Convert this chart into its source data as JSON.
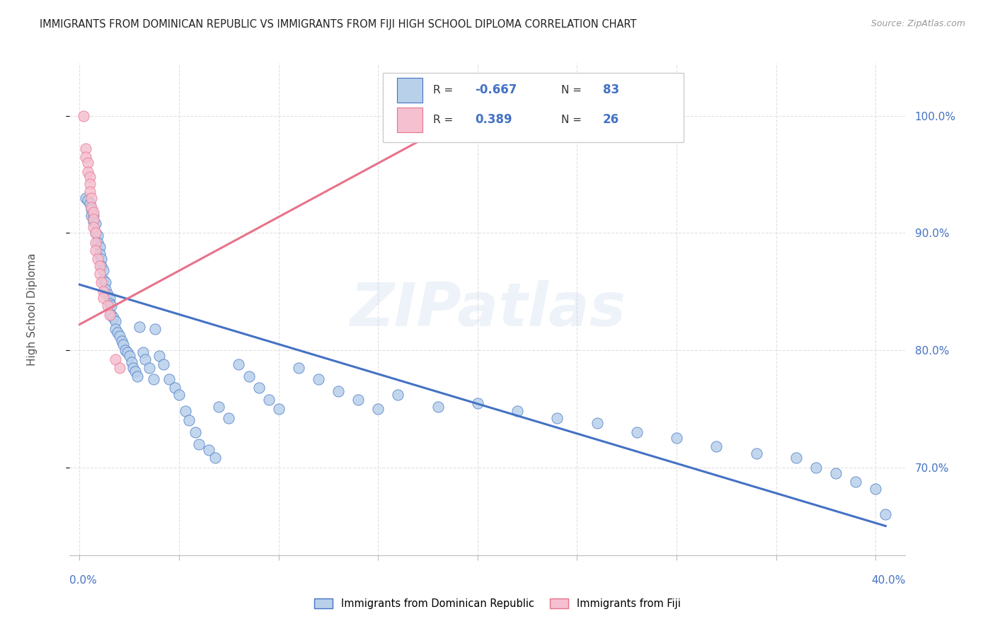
{
  "title": "IMMIGRANTS FROM DOMINICAN REPUBLIC VS IMMIGRANTS FROM FIJI HIGH SCHOOL DIPLOMA CORRELATION CHART",
  "source_text": "Source: ZipAtlas.com",
  "ylabel": "High School Diploma",
  "right_ytick_vals": [
    0.7,
    0.8,
    0.9,
    1.0
  ],
  "right_ytick_labels": [
    "70.0%",
    "80.0%",
    "90.0%",
    "100.0%"
  ],
  "xlim": [
    -0.005,
    0.415
  ],
  "ylim": [
    0.625,
    1.045
  ],
  "legend_r1": "-0.667",
  "legend_n1": "83",
  "legend_r2": "0.389",
  "legend_n2": "26",
  "color_blue": "#b8d0ea",
  "color_pink": "#f5c0d0",
  "line_blue": "#4472c4",
  "line_pink": "#e8728a",
  "title_color": "#222222",
  "source_color": "#999999",
  "blue_scatter_x": [
    0.003,
    0.004,
    0.005,
    0.006,
    0.006,
    0.007,
    0.007,
    0.008,
    0.008,
    0.009,
    0.009,
    0.01,
    0.01,
    0.011,
    0.011,
    0.012,
    0.012,
    0.013,
    0.013,
    0.014,
    0.015,
    0.015,
    0.016,
    0.016,
    0.017,
    0.018,
    0.018,
    0.019,
    0.02,
    0.021,
    0.022,
    0.023,
    0.024,
    0.025,
    0.026,
    0.027,
    0.028,
    0.029,
    0.03,
    0.032,
    0.033,
    0.035,
    0.037,
    0.038,
    0.04,
    0.042,
    0.045,
    0.048,
    0.05,
    0.053,
    0.055,
    0.058,
    0.06,
    0.065,
    0.068,
    0.07,
    0.075,
    0.08,
    0.085,
    0.09,
    0.095,
    0.1,
    0.11,
    0.12,
    0.13,
    0.14,
    0.15,
    0.16,
    0.18,
    0.2,
    0.22,
    0.24,
    0.26,
    0.28,
    0.3,
    0.32,
    0.34,
    0.36,
    0.37,
    0.38,
    0.39,
    0.4,
    0.405
  ],
  "blue_scatter_y": [
    0.93,
    0.928,
    0.925,
    0.92,
    0.915,
    0.915,
    0.91,
    0.908,
    0.9,
    0.898,
    0.892,
    0.888,
    0.882,
    0.878,
    0.872,
    0.868,
    0.86,
    0.858,
    0.852,
    0.848,
    0.845,
    0.84,
    0.838,
    0.83,
    0.828,
    0.825,
    0.818,
    0.815,
    0.812,
    0.808,
    0.805,
    0.8,
    0.798,
    0.795,
    0.79,
    0.785,
    0.782,
    0.778,
    0.82,
    0.798,
    0.792,
    0.785,
    0.775,
    0.818,
    0.795,
    0.788,
    0.775,
    0.768,
    0.762,
    0.748,
    0.74,
    0.73,
    0.72,
    0.715,
    0.708,
    0.752,
    0.742,
    0.788,
    0.778,
    0.768,
    0.758,
    0.75,
    0.785,
    0.775,
    0.765,
    0.758,
    0.75,
    0.762,
    0.752,
    0.755,
    0.748,
    0.742,
    0.738,
    0.73,
    0.725,
    0.718,
    0.712,
    0.708,
    0.7,
    0.695,
    0.688,
    0.682,
    0.66
  ],
  "pink_scatter_x": [
    0.002,
    0.003,
    0.003,
    0.004,
    0.004,
    0.005,
    0.005,
    0.005,
    0.006,
    0.006,
    0.007,
    0.007,
    0.007,
    0.008,
    0.008,
    0.008,
    0.009,
    0.01,
    0.01,
    0.011,
    0.012,
    0.012,
    0.014,
    0.015,
    0.018,
    0.02
  ],
  "pink_scatter_y": [
    1.0,
    0.972,
    0.965,
    0.96,
    0.952,
    0.948,
    0.942,
    0.935,
    0.93,
    0.922,
    0.918,
    0.912,
    0.905,
    0.9,
    0.892,
    0.885,
    0.878,
    0.872,
    0.865,
    0.858,
    0.85,
    0.845,
    0.838,
    0.83,
    0.792,
    0.785
  ],
  "blue_trendline_x": [
    0.0,
    0.405
  ],
  "blue_trendline_y": [
    0.856,
    0.65
  ],
  "pink_trendline_x": [
    0.0,
    0.205
  ],
  "pink_trendline_y": [
    0.822,
    1.01
  ],
  "watermark": "ZIPatlas",
  "grid_color": "#e0e0e0",
  "xtick_vals": [
    0.0,
    0.05,
    0.1,
    0.15,
    0.2,
    0.25,
    0.3,
    0.35,
    0.4
  ]
}
